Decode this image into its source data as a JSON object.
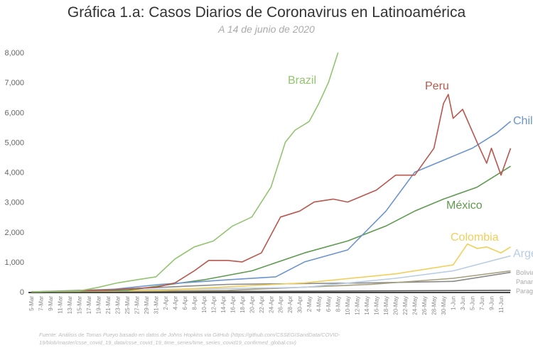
{
  "chart_data": {
    "type": "line",
    "title": "Gráfica 1.a: Casos Diarios de Coronavirus en Latinoamérica",
    "subtitle": "A 14 de junio de 2020",
    "source": "Fuente: Análisis de Tomas Pueyo basado en datos de Johns Hopkins via GitHub (https://github.com/CSSEGISandData/COVID-19/blob/master/csse_covid_19_data/csse_covid_19_time_series/time_series_covid19_confirmed_global.csv)",
    "xlabel": "",
    "ylabel": "",
    "ylim": [
      0,
      8000
    ],
    "yticks": [
      "0",
      "1,000",
      "2,000",
      "3,000",
      "4,000",
      "5,000",
      "6,000",
      "7,000",
      "8,000"
    ],
    "xticks": [
      "5-Mar",
      "7-Mar",
      "9-Mar",
      "11-Mar",
      "13-Mar",
      "15-Mar",
      "17-Mar",
      "19-Mar",
      "21-Mar",
      "23-Mar",
      "25-Mar",
      "27-Mar",
      "29-Mar",
      "31-Mar",
      "2-Apr",
      "4-Apr",
      "6-Apr",
      "8-Apr",
      "10-Apr",
      "12-Apr",
      "14-Apr",
      "16-Apr",
      "18-Apr",
      "20-Apr",
      "22-Apr",
      "24-Apr",
      "26-Apr",
      "28-Apr",
      "30-Apr",
      "2-May",
      "4-May",
      "6-May",
      "8-May",
      "10-May",
      "12-May",
      "14-May",
      "16-May",
      "18-May",
      "20-May",
      "22-May",
      "24-May",
      "26-May",
      "28-May",
      "30-May",
      "1-Jun",
      "3-Jun",
      "5-Jun",
      "7-Jun",
      "9-Jun",
      "11-Jun"
    ],
    "grid": false,
    "legend": "direct labels at line ends",
    "series": [
      {
        "name": "Brazil",
        "color": "#93c46f",
        "points": [
          [
            "5-Mar",
            0
          ],
          [
            "15-Mar",
            30
          ],
          [
            "19-Mar",
            150
          ],
          [
            "23-Mar",
            300
          ],
          [
            "27-Mar",
            400
          ],
          [
            "31-Mar",
            500
          ],
          [
            "4-Apr",
            1100
          ],
          [
            "8-Apr",
            1500
          ],
          [
            "12-Apr",
            1700
          ],
          [
            "16-Apr",
            2200
          ],
          [
            "20-Apr",
            2500
          ],
          [
            "24-Apr",
            3500
          ],
          [
            "27-Apr",
            5000
          ],
          [
            "29-Apr",
            5400
          ],
          [
            "2-May",
            5700
          ],
          [
            "4-May",
            6300
          ],
          [
            "6-May",
            7000
          ],
          [
            "8-May",
            8000
          ]
        ]
      },
      {
        "name": "Peru",
        "color": "#b9574d",
        "points": [
          [
            "5-Mar",
            0
          ],
          [
            "20-Mar",
            50
          ],
          [
            "31-Mar",
            150
          ],
          [
            "4-Apr",
            300
          ],
          [
            "8-Apr",
            700
          ],
          [
            "11-Apr",
            1050
          ],
          [
            "15-Apr",
            1050
          ],
          [
            "18-Apr",
            1000
          ],
          [
            "22-Apr",
            1300
          ],
          [
            "26-Apr",
            2500
          ],
          [
            "30-Apr",
            2700
          ],
          [
            "3-May",
            3000
          ],
          [
            "7-May",
            3100
          ],
          [
            "10-May",
            3000
          ],
          [
            "16-May",
            3400
          ],
          [
            "20-May",
            3900
          ],
          [
            "24-May",
            3900
          ],
          [
            "28-May",
            4800
          ],
          [
            "30-May",
            6300
          ],
          [
            "31-May",
            6600
          ],
          [
            "1-Jun",
            5800
          ],
          [
            "3-Jun",
            6100
          ],
          [
            "6-Jun",
            5000
          ],
          [
            "8-Jun",
            4300
          ],
          [
            "9-Jun",
            4800
          ],
          [
            "11-Jun",
            3900
          ],
          [
            "13-Jun",
            4800
          ]
        ]
      },
      {
        "name": "Chile",
        "color": "#6b94cf",
        "points": [
          [
            "5-Mar",
            0
          ],
          [
            "20-Mar",
            50
          ],
          [
            "1-Apr",
            250
          ],
          [
            "15-Apr",
            400
          ],
          [
            "25-Apr",
            500
          ],
          [
            "1-May",
            1000
          ],
          [
            "10-May",
            1400
          ],
          [
            "18-May",
            2700
          ],
          [
            "24-May",
            4000
          ],
          [
            "30-May",
            4400
          ],
          [
            "5-Jun",
            4800
          ],
          [
            "10-Jun",
            5300
          ],
          [
            "13-Jun",
            5700
          ]
        ]
      },
      {
        "name": "México",
        "color": "#5f9a4f",
        "points": [
          [
            "5-Mar",
            0
          ],
          [
            "25-Mar",
            50
          ],
          [
            "10-Apr",
            400
          ],
          [
            "20-Apr",
            700
          ],
          [
            "1-May",
            1300
          ],
          [
            "10-May",
            1700
          ],
          [
            "18-May",
            2200
          ],
          [
            "24-May",
            2700
          ],
          [
            "30-May",
            3100
          ],
          [
            "6-Jun",
            3500
          ],
          [
            "13-Jun",
            4200
          ]
        ]
      },
      {
        "name": "Colombia",
        "color": "#f1cf5a",
        "points": [
          [
            "5-Mar",
            0
          ],
          [
            "1-Apr",
            50
          ],
          [
            "1-May",
            300
          ],
          [
            "20-May",
            600
          ],
          [
            "1-Jun",
            900
          ],
          [
            "4-Jun",
            1600
          ],
          [
            "6-Jun",
            1450
          ],
          [
            "8-Jun",
            1500
          ],
          [
            "11-Jun",
            1300
          ],
          [
            "13-Jun",
            1500
          ]
        ]
      },
      {
        "name": "Argentina",
        "color": "#b8cde4",
        "points": [
          [
            "5-Mar",
            0
          ],
          [
            "1-Apr",
            80
          ],
          [
            "1-May",
            150
          ],
          [
            "20-May",
            450
          ],
          [
            "1-Jun",
            700
          ],
          [
            "13-Jun",
            1200
          ]
        ]
      },
      {
        "name": "Bolivia",
        "color": "#a79f7c",
        "points": [
          [
            "5-Mar",
            0
          ],
          [
            "15-Apr",
            50
          ],
          [
            "15-May",
            250
          ],
          [
            "1-Jun",
            450
          ],
          [
            "13-Jun",
            700
          ]
        ]
      },
      {
        "name": "Panamá",
        "color": "#8a8a8a",
        "points": [
          [
            "5-Mar",
            0
          ],
          [
            "25-Mar",
            100
          ],
          [
            "15-Apr",
            250
          ],
          [
            "15-May",
            300
          ],
          [
            "1-Jun",
            350
          ],
          [
            "13-Jun",
            650
          ]
        ]
      },
      {
        "name": "Paraguay",
        "color": "#555555",
        "points": [
          [
            "5-Mar",
            0
          ],
          [
            "1-May",
            20
          ],
          [
            "13-Jun",
            50
          ]
        ]
      }
    ]
  }
}
